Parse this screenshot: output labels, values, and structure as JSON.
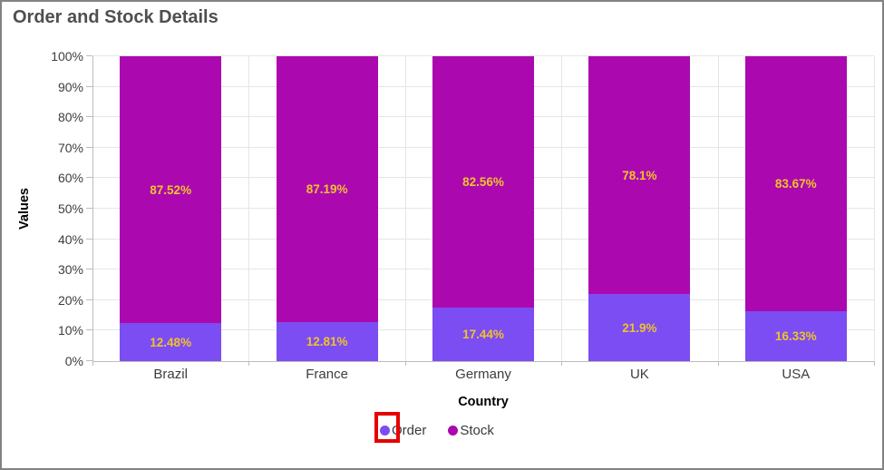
{
  "header": {
    "title": "Order and Stock Details"
  },
  "chart_data": {
    "type": "bar",
    "variant": "stacked-column-100",
    "title": "Order and Stock Details",
    "categories": [
      "Brazil",
      "France",
      "Germany",
      "UK",
      "USA"
    ],
    "series": [
      {
        "name": "Order",
        "color": "#7B4DF2",
        "values": [
          12.48,
          12.81,
          17.44,
          21.9,
          16.33
        ],
        "labels": [
          "12.48%",
          "12.81%",
          "17.44%",
          "21.9%",
          "16.33%"
        ]
      },
      {
        "name": "Stock",
        "color": "#AB09AF",
        "values": [
          87.52,
          87.19,
          82.56,
          78.1,
          83.67
        ],
        "labels": [
          "87.52%",
          "87.19%",
          "82.56%",
          "78.1%",
          "83.67%"
        ]
      }
    ],
    "xlabel": "Country",
    "ylabel": "Values",
    "ylim": [
      0,
      100
    ],
    "y_ticks": [
      "0%",
      "10%",
      "20%",
      "30%",
      "40%",
      "50%",
      "60%",
      "70%",
      "80%",
      "90%",
      "100%"
    ],
    "grid": true,
    "legend_position": "bottom",
    "colors": {
      "data_label": "#EFC32B",
      "gridline": "#E5E5E5",
      "axis_line": "#BDBDBD",
      "tick_label": "#3D3D3D",
      "axis_title": "#000000",
      "legend_text": "#3A3A3A",
      "title_text": "#4F4F4F",
      "window_border": "#828282"
    }
  },
  "annotation": {
    "legend_highlight_color": "#E60000",
    "target": "legend-marker-order"
  }
}
